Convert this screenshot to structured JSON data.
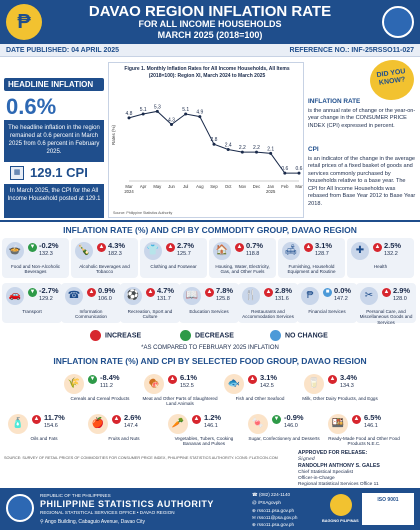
{
  "header": {
    "title": "DAVAO REGION INFLATION RATE",
    "subtitle": "FOR ALL INCOME HOUSEHOLDS",
    "period": "MARCH 2025 (2018=100)",
    "date_published": "DATE PUBLISHED: 04 APRIL 2025",
    "reference_no": "REFERENCE NO.: INF-25RSSO11-027"
  },
  "headline": {
    "label": "HEADLINE INFLATION",
    "rate": "0.6%",
    "text": "The headline inflation in the region remained at 0.6 percent in March 2025 from 0.6 percent in February 2025.",
    "cpi_value": "129.1 CPI",
    "cpi_text": "In March 2025, the CPI for the All Income Household posted at 129.1"
  },
  "chart_data": {
    "type": "line",
    "title": "Figure 1. Monthly Inflation Rates for All Income Households, All Items (2018=100): Region XI, March 2024 to March 2025",
    "categories": [
      "Mar 2024",
      "Apr",
      "May",
      "Jun",
      "Jul",
      "Aug",
      "Sep",
      "Oct",
      "Nov",
      "Dec",
      "Jan 2025",
      "Feb",
      "Mar"
    ],
    "values": [
      4.8,
      5.1,
      5.3,
      4.3,
      5.1,
      4.9,
      2.8,
      2.4,
      2.2,
      2.2,
      2.1,
      0.6,
      0.6
    ],
    "ylabel": "Rates (%)",
    "ylim": [
      0,
      7
    ],
    "source": "Source: Philippine Statistics Authority",
    "color": "#1a2a4a"
  },
  "definitions": {
    "did_you_know": "DID YOU KNOW?",
    "inflation_title": "INFLATION RATE",
    "inflation_text": "is the annual rate of change or the year-on-year change in the CONSUMER PRICE INDEX (CPI) expressed in percent.",
    "cpi_title": "CPI",
    "cpi_text": "is an indicator of the change in the average retail prices of a fixed basket of goods and services commonly purchased by households relative to a base year. The CPI for All Income Households was rebased from Base Year 2012 to Base Year 2018."
  },
  "commodity": {
    "title": "INFLATION RATE (%) AND CPI BY COMMODITY GROUP, DAVAO REGION",
    "items": [
      {
        "rate": "-0.2%",
        "cpi": "132.3",
        "name": "Food and Non-Alcoholic Beverages",
        "dir": "dn",
        "icon": "food-icon",
        "glyph": "🍲"
      },
      {
        "rate": "4.3%",
        "cpi": "182.3",
        "name": "Alcoholic Beverages and Tobacco",
        "dir": "up",
        "icon": "bottle-icon",
        "glyph": "🍾"
      },
      {
        "rate": "2.7%",
        "cpi": "125.7",
        "name": "Clothing and Footwear",
        "dir": "up",
        "icon": "shirt-icon",
        "glyph": "👕"
      },
      {
        "rate": "0.7%",
        "cpi": "118.8",
        "name": "Housing, Water, Electricity, Gas, and Other Fuels",
        "dir": "up",
        "icon": "house-icon",
        "glyph": "🏠"
      },
      {
        "rate": "3.1%",
        "cpi": "128.7",
        "name": "Furnishing, Household Equipment and Routine",
        "dir": "up",
        "icon": "sofa-icon",
        "glyph": "🛋"
      },
      {
        "rate": "2.5%",
        "cpi": "132.2",
        "name": "Health",
        "dir": "up",
        "icon": "health-icon",
        "glyph": "✚"
      },
      {
        "rate": "-2.7%",
        "cpi": "129.2",
        "name": "Transport",
        "dir": "dn",
        "icon": "car-icon",
        "glyph": "🚗"
      },
      {
        "rate": "0.9%",
        "cpi": "106.0",
        "name": "Information Communication",
        "dir": "up",
        "icon": "phone-icon",
        "glyph": "☎"
      },
      {
        "rate": "4.7%",
        "cpi": "131.7",
        "name": "Recreation, Sport and Culture",
        "dir": "up",
        "icon": "ball-icon",
        "glyph": "⚽"
      },
      {
        "rate": "7.8%",
        "cpi": "125.8",
        "name": "Education Services",
        "dir": "up",
        "icon": "book-icon",
        "glyph": "📖"
      },
      {
        "rate": "2.8%",
        "cpi": "131.6",
        "name": "Restaurants and Accommodation Services",
        "dir": "up",
        "icon": "restaurant-icon",
        "glyph": "🍴"
      },
      {
        "rate": "0.0%",
        "cpi": "147.2",
        "name": "Financial Services",
        "dir": "nc",
        "icon": "money-icon",
        "glyph": "₱"
      },
      {
        "rate": "2.9%",
        "cpi": "128.0",
        "name": "Personal Care, and Miscellaneous Goods and Services",
        "dir": "up",
        "icon": "care-icon",
        "glyph": "✂"
      }
    ]
  },
  "legend": {
    "increase": "INCREASE",
    "decrease": "DECREASE",
    "no_change": "NO CHANGE",
    "note": "*AS COMPARED TO FEBRUARY 2025 INFLATION"
  },
  "food": {
    "title": "INFLATION RATE (%) AND CPI BY SELECTED FOOD GROUP, DAVAO REGION",
    "items": [
      {
        "rate": "-8.4%",
        "cpi": "111.2",
        "name": "Cereals and Cereal Products",
        "dir": "dn",
        "icon": "rice-icon",
        "glyph": "🌾"
      },
      {
        "rate": "6.1%",
        "cpi": "152.5",
        "name": "Meat and Other Parts of Slaughtered Land Animals",
        "dir": "up",
        "icon": "meat-icon",
        "glyph": "🍖"
      },
      {
        "rate": "3.1%",
        "cpi": "142.5",
        "name": "Fish and Other Seafood",
        "dir": "up",
        "icon": "fish-icon",
        "glyph": "🐟"
      },
      {
        "rate": "3.4%",
        "cpi": "134.3",
        "name": "Milk, Other Dairy Products, and Eggs",
        "dir": "up",
        "icon": "milk-icon",
        "glyph": "🥛"
      },
      {
        "rate": "11.7%",
        "cpi": "154.6",
        "name": "Oils and Fats",
        "dir": "up",
        "icon": "oil-icon",
        "glyph": "🧴"
      },
      {
        "rate": "2.6%",
        "cpi": "147.4",
        "name": "Fruits and Nuts",
        "dir": "up",
        "icon": "fruit-icon",
        "glyph": "🍎"
      },
      {
        "rate": "1.2%",
        "cpi": "146.1",
        "name": "Vegetables, Tubers, Cooking Bananas and Pulses",
        "dir": "up",
        "icon": "vegetable-icon",
        "glyph": "🥕"
      },
      {
        "rate": "-0.9%",
        "cpi": "146.0",
        "name": "Sugar, Confectionery and Desserts",
        "dir": "dn",
        "icon": "candy-icon",
        "glyph": "🍬"
      },
      {
        "rate": "6.5%",
        "cpi": "146.1",
        "name": "Ready-Made Food and Other Food Products N.E.C.",
        "dir": "up",
        "icon": "ready-food-icon",
        "glyph": "🍱"
      }
    ]
  },
  "source_note": "SOURCE: SURVEY OF RETAIL PRICES OF COMMODITIES FOR CONSUMER PRICE INDEX, PHILIPPINE STATISTICS AUTHORITY. ICONS: FLATICON.COM",
  "approval": {
    "label": "APPROVED FOR RELEASE:",
    "signature": "Signed",
    "name": "RANDOLPH ANTHONY S. GALES",
    "role1": "Chief Statistical Specialist",
    "role2": "Officer-in-Charge",
    "role3": "Regional Statistical Services Office 11"
  },
  "footer": {
    "republic": "REPUBLIC OF THE PHILIPPINES",
    "agency": "PHILIPPINE STATISTICS AUTHORITY",
    "office": "REGIONAL STATISTICAL SERVICES OFFICE • DAVAO REGION",
    "address": "Ango Building, Cabaguio Avenue, Davao City",
    "phone": "(082) 224-1140",
    "social": "/PSAgovph",
    "email1": "rsso11.psa.gov.ph",
    "email2": "rsso11@psa.gov.ph",
    "email3": "rsso11.psa.gov.ph",
    "bagong": "BAGONG PILIPINAS",
    "iso": "ISO 9001"
  }
}
